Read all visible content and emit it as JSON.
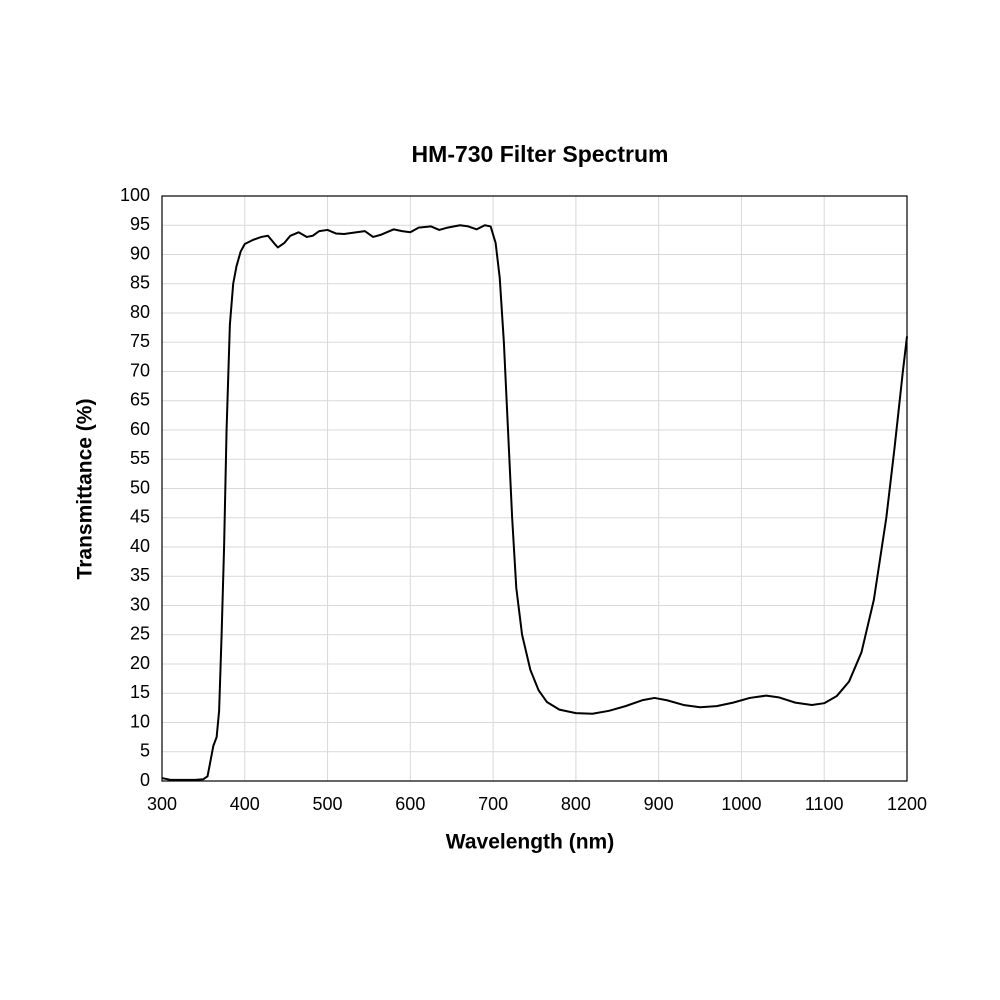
{
  "chart_data": {
    "type": "line",
    "title": "HM-730 Filter Spectrum",
    "x_label": "Wavelength (nm)",
    "y_label": "Transmittance (%)",
    "color": "#000000",
    "grid": true,
    "xlim": [
      300,
      1200
    ],
    "xticks": [
      300,
      400,
      500,
      600,
      700,
      800,
      900,
      1000,
      1100,
      1200
    ],
    "ylim": [
      0,
      100
    ],
    "yticks": [
      0,
      5,
      10,
      15,
      20,
      25,
      30,
      35,
      40,
      45,
      50,
      55,
      60,
      65,
      70,
      75,
      80,
      85,
      90,
      95,
      100
    ],
    "x": [
      300,
      310,
      320,
      340,
      350,
      355,
      358,
      362,
      366,
      369,
      372,
      375,
      378,
      382,
      386,
      390,
      395,
      400,
      410,
      420,
      428,
      435,
      440,
      448,
      455,
      465,
      475,
      482,
      490,
      500,
      510,
      520,
      535,
      545,
      555,
      565,
      580,
      590,
      600,
      610,
      625,
      635,
      645,
      660,
      670,
      680,
      690,
      697,
      703,
      708,
      713,
      718,
      723,
      728,
      735,
      745,
      755,
      765,
      780,
      800,
      820,
      840,
      860,
      880,
      895,
      910,
      930,
      950,
      970,
      990,
      1010,
      1030,
      1045,
      1065,
      1085,
      1100,
      1115,
      1130,
      1145,
      1160,
      1175,
      1185,
      1195,
      1200
    ],
    "values": [
      0.5,
      0.2,
      0.2,
      0.2,
      0.3,
      0.8,
      3,
      6,
      7.5,
      12,
      25,
      40,
      60,
      78,
      85,
      88,
      90.5,
      91.8,
      92.5,
      93,
      93.2,
      92,
      91.2,
      92,
      93.2,
      93.8,
      93,
      93.2,
      94,
      94.2,
      93.6,
      93.5,
      93.8,
      94,
      93,
      93.4,
      94.3,
      94,
      93.8,
      94.6,
      94.8,
      94.2,
      94.6,
      95,
      94.8,
      94.3,
      95,
      94.8,
      92,
      86,
      75,
      60,
      45,
      33,
      25,
      19,
      15.5,
      13.5,
      12.2,
      11.6,
      11.5,
      12,
      12.8,
      13.8,
      14.2,
      13.8,
      13,
      12.6,
      12.8,
      13.4,
      14.2,
      14.6,
      14.3,
      13.4,
      13,
      13.3,
      14.5,
      17,
      22,
      31,
      45,
      57,
      70,
      76
    ]
  }
}
